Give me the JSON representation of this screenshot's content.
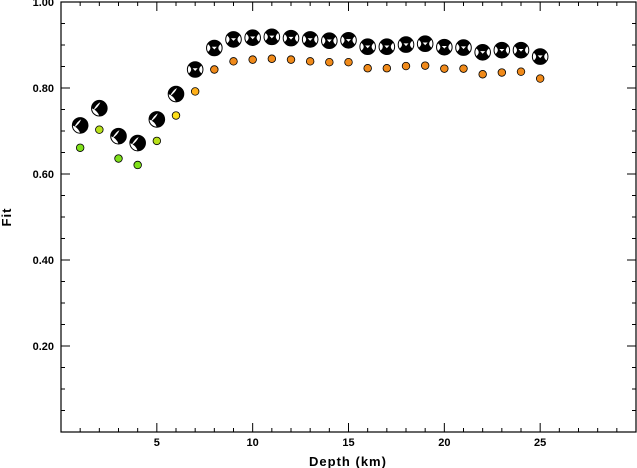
{
  "chart_data": {
    "type": "scatter",
    "title": "",
    "xlabel": "Depth (km)",
    "ylabel": "Fit",
    "xlim": [
      0,
      30
    ],
    "ylim": [
      0,
      1.0
    ],
    "xticks_major": [
      5,
      10,
      15,
      20,
      25
    ],
    "xtick_labels": [
      "5",
      "10",
      "15",
      "20",
      "25"
    ],
    "yticks_major": [
      0.2,
      0.4,
      0.6,
      0.8,
      1.0
    ],
    "ytick_labels": [
      "0.20",
      "0.40",
      "0.60",
      "0.80",
      "1.00"
    ],
    "grid": false,
    "legend": "none",
    "series": [
      {
        "marker": "focal-mechanism",
        "color": "#000000",
        "x": [
          1,
          2,
          3,
          4,
          5,
          6,
          7,
          8,
          9,
          10,
          11,
          12,
          13,
          14,
          15,
          16,
          17,
          18,
          19,
          20,
          21,
          22,
          23,
          24,
          25
        ],
        "y": [
          0.713,
          0.753,
          0.688,
          0.672,
          0.727,
          0.786,
          0.843,
          0.893,
          0.913,
          0.917,
          0.919,
          0.916,
          0.913,
          0.91,
          0.911,
          0.896,
          0.896,
          0.901,
          0.903,
          0.895,
          0.894,
          0.883,
          0.888,
          0.888,
          0.873
        ]
      },
      {
        "marker": "circle",
        "x": [
          1,
          2,
          3,
          4,
          5,
          6,
          7,
          8,
          9,
          10,
          11,
          12,
          13,
          14,
          15,
          16,
          17,
          18,
          19,
          20,
          21,
          22,
          23,
          24,
          25
        ],
        "y": [
          0.661,
          0.703,
          0.636,
          0.621,
          0.677,
          0.736,
          0.792,
          0.843,
          0.862,
          0.866,
          0.868,
          0.866,
          0.862,
          0.86,
          0.86,
          0.846,
          0.846,
          0.851,
          0.852,
          0.845,
          0.845,
          0.832,
          0.836,
          0.838,
          0.822
        ],
        "colors": [
          "#7fe01a",
          "#b8e01a",
          "#7fe01a",
          "#7fe01a",
          "#b8e01a",
          "#ffe01a",
          "#ffb01a",
          "#f08a1a",
          "#f08a1a",
          "#f08a1a",
          "#f08a1a",
          "#f08a1a",
          "#f08a1a",
          "#f08a1a",
          "#f08a1a",
          "#f08a1a",
          "#f08a1a",
          "#f08a1a",
          "#f08a1a",
          "#f08a1a",
          "#f08a1a",
          "#f08a1a",
          "#f08a1a",
          "#f08a1a",
          "#f08a1a"
        ]
      }
    ]
  }
}
